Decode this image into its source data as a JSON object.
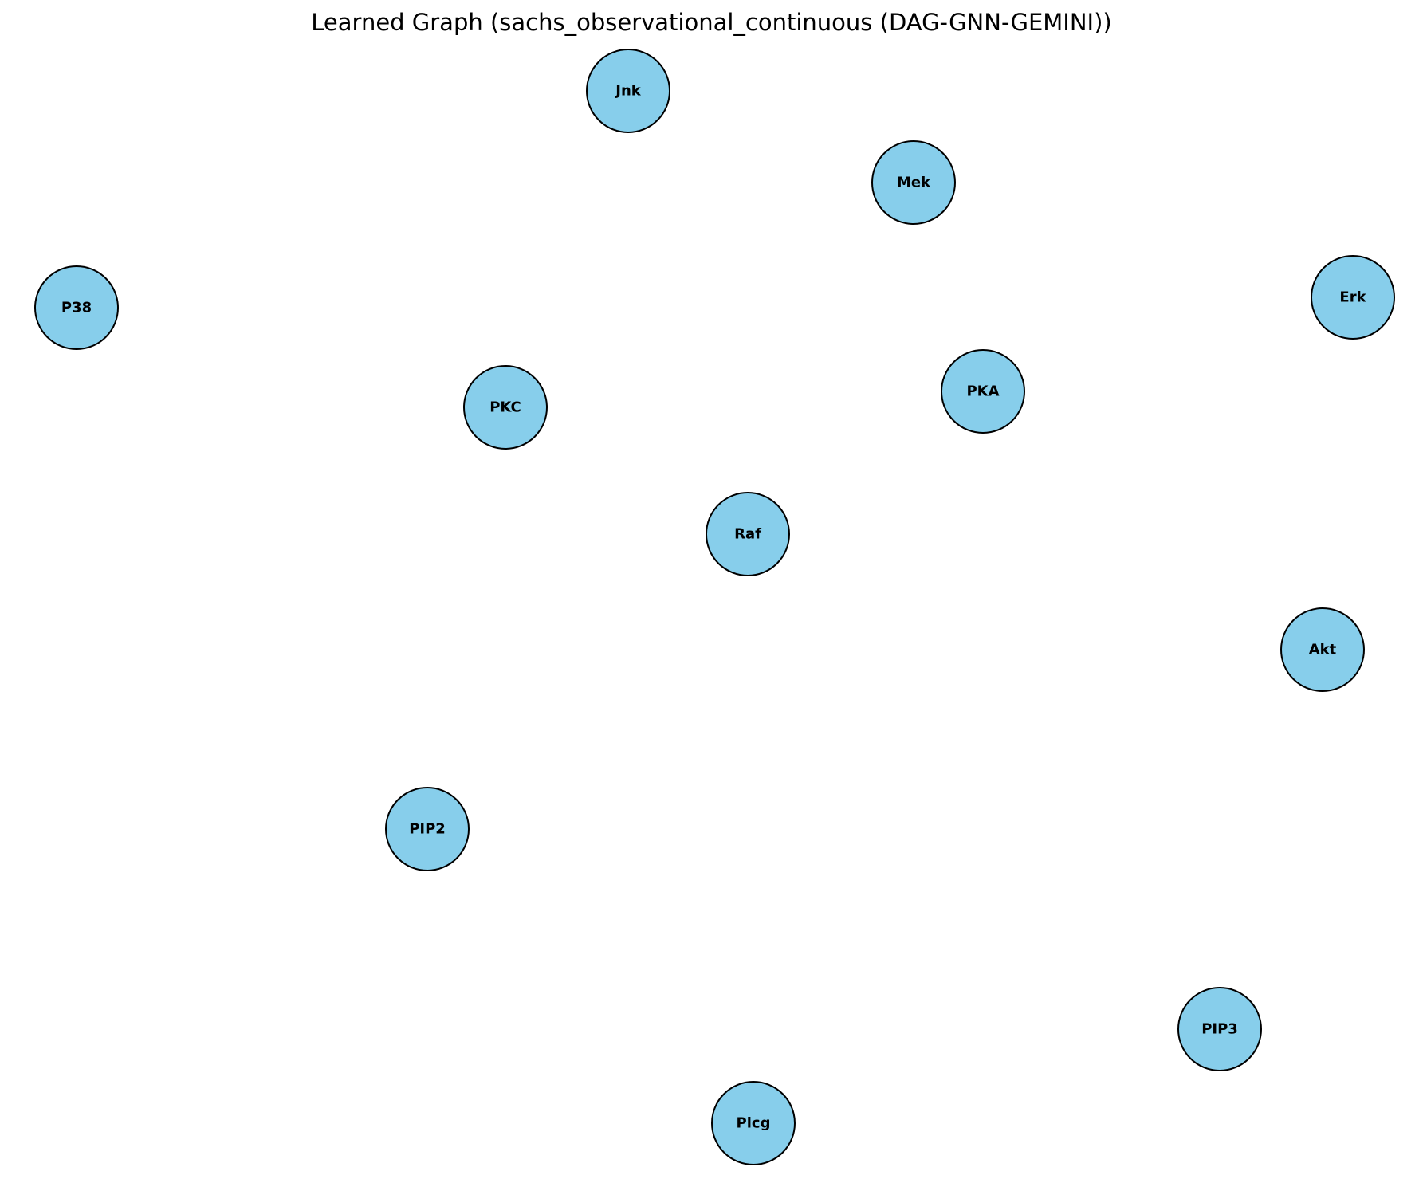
{
  "title": "Learned Graph (sachs_observational_continuous (DAG-GNN-GEMINI))",
  "node_color": "#87CEEB",
  "node_stroke_color": "#000000",
  "nodes": [
    {
      "id": "Jnk",
      "label": "Jnk"
    },
    {
      "id": "Mek",
      "label": "Mek"
    },
    {
      "id": "P38",
      "label": "P38"
    },
    {
      "id": "Erk",
      "label": "Erk"
    },
    {
      "id": "PKC",
      "label": "PKC"
    },
    {
      "id": "PKA",
      "label": "PKA"
    },
    {
      "id": "Raf",
      "label": "Raf"
    },
    {
      "id": "Akt",
      "label": "Akt"
    },
    {
      "id": "PIP2",
      "label": "PIP2"
    },
    {
      "id": "PIP3",
      "label": "PIP3"
    },
    {
      "id": "Plcg",
      "label": "Plcg"
    }
  ],
  "edges": []
}
